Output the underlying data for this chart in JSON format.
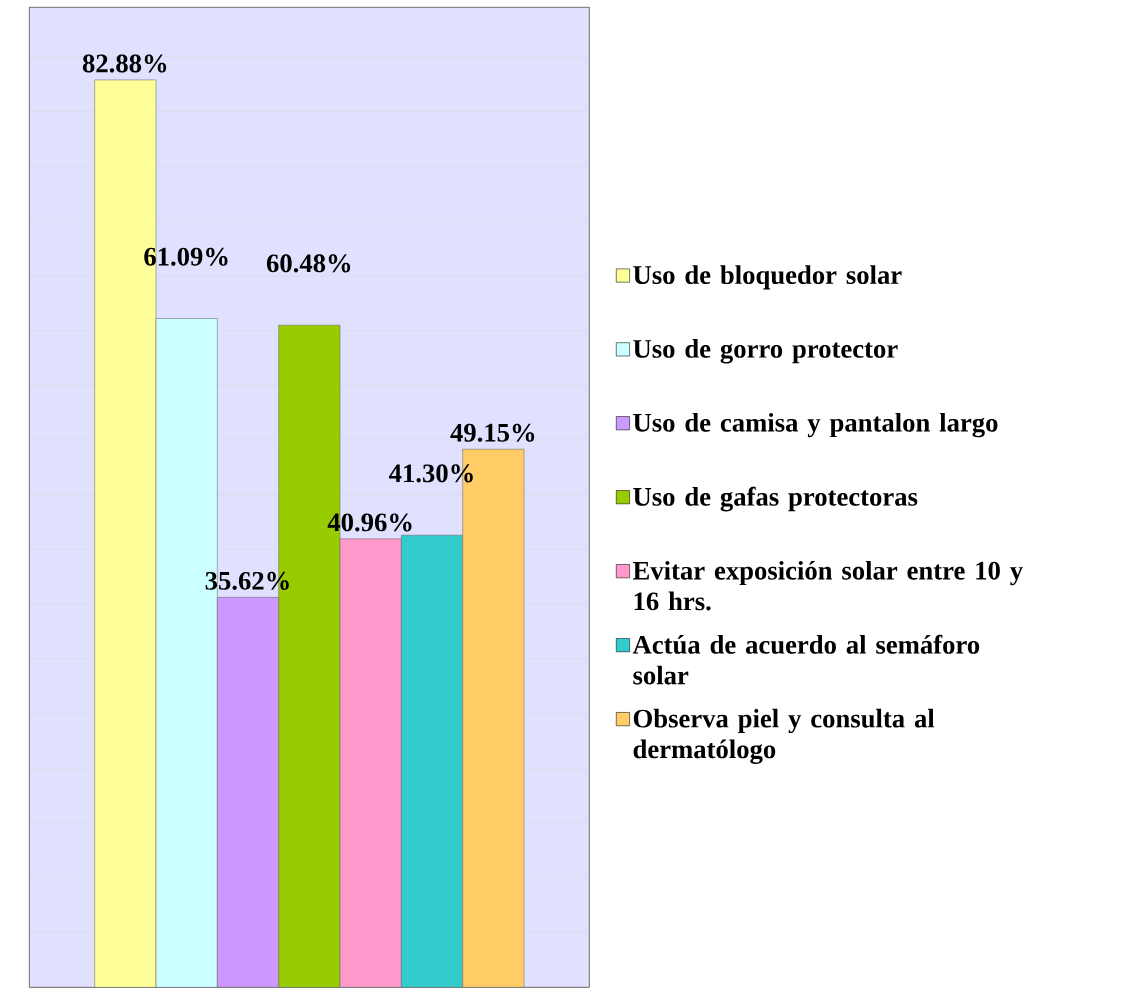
{
  "chart_data": {
    "type": "bar",
    "categories": [
      null
    ],
    "legend": "right",
    "grid": "y",
    "tick_labels": false,
    "series": [
      {
        "name": "Uso de bloquedor solar",
        "color": "#ffff99",
        "values": [
          82.88
        ],
        "value_labels": [
          "82.88%"
        ]
      },
      {
        "name": "Uso de gorro protector",
        "color": "#ccffff",
        "values": [
          61.09
        ],
        "value_labels": [
          "61.09%"
        ]
      },
      {
        "name": "Uso de camisa y pantalon largo",
        "color": "#cc99ff",
        "values": [
          35.62
        ],
        "value_labels": [
          "35.62%"
        ]
      },
      {
        "name": "Uso de gafas protectoras",
        "color": "#99cc00",
        "values": [
          60.48
        ],
        "value_labels": [
          "60.48%"
        ]
      },
      {
        "name": "Evitar exposición solar entre 10 y 16 hrs.",
        "color": "#ff99cc",
        "values": [
          40.96
        ],
        "value_labels": [
          "40.96%"
        ]
      },
      {
        "name": "Actúa de acuerdo al semáforo solar",
        "color": "#33cccc",
        "values": [
          41.3
        ],
        "value_labels": [
          "41.30%"
        ]
      },
      {
        "name": "Observa piel y consulta al dermatólogo",
        "color": "#ffcc66",
        "values": [
          49.15
        ],
        "value_labels": [
          "49.15%"
        ]
      }
    ]
  }
}
